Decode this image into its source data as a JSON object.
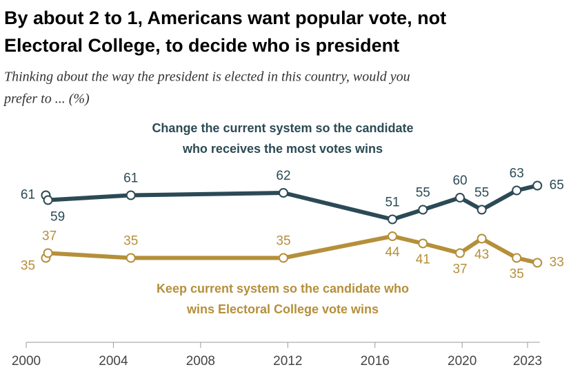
{
  "chart_data": {
    "type": "line",
    "title": "By about 2 to 1, Americans want popular vote, not Electoral College, to decide who is president",
    "subtitle": "Thinking about the way the president is elected in this country, would you prefer to ... (%)",
    "x": [
      2000.9,
      2001.0,
      2004.8,
      2011.8,
      2016.8,
      2018.2,
      2019.9,
      2020.9,
      2022.5,
      2023.45
    ],
    "series": [
      {
        "name": "Change the current system so the candidate who receives the most votes wins",
        "color": "#2c4a55",
        "values": [
          61,
          59,
          61,
          62,
          51,
          55,
          60,
          55,
          63,
          65
        ]
      },
      {
        "name": "Keep current system so the candidate who wins Electoral College vote wins",
        "color": "#b58f3a",
        "values": [
          35,
          37,
          35,
          35,
          44,
          41,
          37,
          43,
          35,
          33
        ]
      }
    ],
    "xlim": [
      2000,
      2023.5
    ],
    "xticks": [
      2000,
      2004,
      2008,
      2012,
      2016,
      2020,
      2023
    ],
    "ylim": [
      0,
      100
    ]
  }
}
